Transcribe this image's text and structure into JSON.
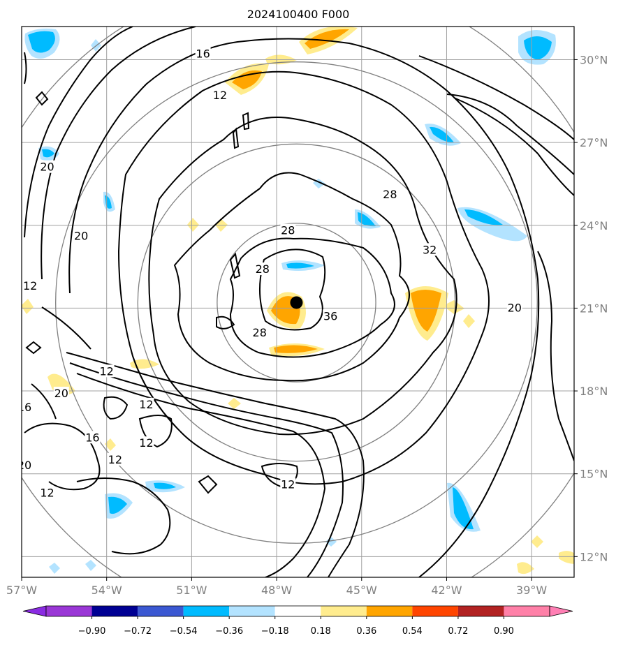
{
  "title": "2024100400 F000",
  "map": {
    "lon_range": [
      -57,
      -37.5
    ],
    "lat_range": [
      11.25,
      31.2
    ],
    "lon_ticks": [
      {
        "value": -57,
        "label": "57°W"
      },
      {
        "value": -54,
        "label": "54°W"
      },
      {
        "value": -51,
        "label": "51°W"
      },
      {
        "value": -48,
        "label": "48°W"
      },
      {
        "value": -45,
        "label": "45°W"
      },
      {
        "value": -42,
        "label": "42°W"
      },
      {
        "value": -39,
        "label": "39°W"
      }
    ],
    "lat_ticks": [
      {
        "value": 12,
        "label": "12°N"
      },
      {
        "value": 15,
        "label": "15°N"
      },
      {
        "value": 18,
        "label": "18°N"
      },
      {
        "value": 21,
        "label": "21°N"
      },
      {
        "value": 24,
        "label": "24°N"
      },
      {
        "value": 27,
        "label": "27°N"
      },
      {
        "value": 30,
        "label": "30°N"
      }
    ],
    "center": {
      "lon": -47.3,
      "lat": 21.2
    },
    "range_rings_deg": [
      2.8,
      5.6,
      8.5,
      11.5
    ],
    "contour_labels": [
      {
        "text": "16",
        "lon": -50.6,
        "lat": 30.2
      },
      {
        "text": "12",
        "lon": -50.0,
        "lat": 28.7
      },
      {
        "text": "20",
        "lon": -56.1,
        "lat": 26.1
      },
      {
        "text": "20",
        "lon": -54.9,
        "lat": 23.6
      },
      {
        "text": "12",
        "lon": -56.7,
        "lat": 21.8
      },
      {
        "text": "28",
        "lon": -44.0,
        "lat": 25.1
      },
      {
        "text": "28",
        "lon": -47.6,
        "lat": 23.8
      },
      {
        "text": "32",
        "lon": -42.6,
        "lat": 23.1
      },
      {
        "text": "28",
        "lon": -48.5,
        "lat": 22.4
      },
      {
        "text": "36",
        "lon": -46.1,
        "lat": 20.7
      },
      {
        "text": "28",
        "lon": -48.6,
        "lat": 20.1
      },
      {
        "text": "20",
        "lon": -39.6,
        "lat": 21.0
      },
      {
        "text": "12",
        "lon": -54.0,
        "lat": 18.7
      },
      {
        "text": "20",
        "lon": -55.6,
        "lat": 17.9
      },
      {
        "text": "16",
        "lon": -56.9,
        "lat": 17.4
      },
      {
        "text": "12",
        "lon": -52.6,
        "lat": 17.5
      },
      {
        "text": "16",
        "lon": -54.5,
        "lat": 16.3
      },
      {
        "text": "12",
        "lon": -52.6,
        "lat": 16.1
      },
      {
        "text": "12",
        "lon": -53.7,
        "lat": 15.5
      },
      {
        "text": "20",
        "lon": -56.9,
        "lat": 15.3
      },
      {
        "text": "12",
        "lon": -56.1,
        "lat": 14.3
      },
      {
        "text": "12",
        "lon": -47.6,
        "lat": 14.6
      }
    ]
  },
  "colorbar": {
    "labels": [
      "−0.90",
      "−0.72",
      "−0.54",
      "−0.36",
      "−0.18",
      "0.18",
      "0.36",
      "0.54",
      "0.72",
      "0.90"
    ],
    "colors": [
      "#9a37d6",
      "#000093",
      "#3b58d2",
      "#00bbff",
      "#b3e3ff",
      "#ffffff",
      "#ffec8e",
      "#ffa500",
      "#ff4500",
      "#b22222",
      "#ff80a8"
    ],
    "under_color": "#8a2be2",
    "over_color": "#ff7fb4"
  }
}
